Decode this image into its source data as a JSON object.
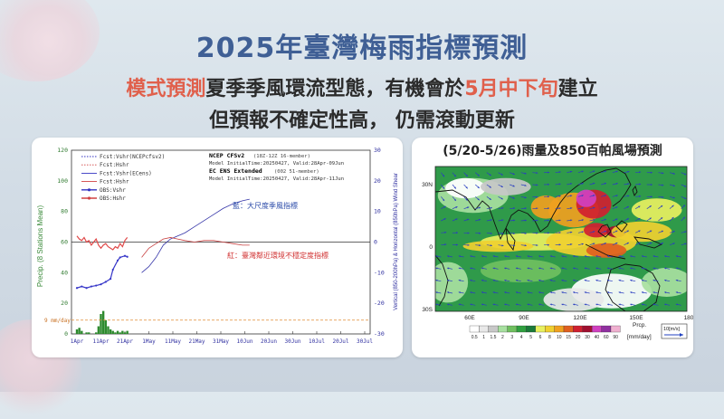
{
  "title": "2025年臺灣梅雨指標預測",
  "subtitle": {
    "line1_red1": "模式預測",
    "line1_mid": "夏季季風環流型態，有機會於",
    "line1_red2": "5月中下旬",
    "line1_end": "建立",
    "line2": "但預報不確定性高， 仍需滾動更新"
  },
  "chart_data": [
    {
      "type": "line",
      "ylabel": "Precip. (8 Stations Mean)",
      "y2label": "Vertical (850-200hPa) & Horizontal (850hPa) Wind Shear",
      "ylim": [
        0,
        120
      ],
      "y2lim": [
        -30,
        30
      ],
      "yticks": [
        "0",
        "20",
        "40",
        "60",
        "80",
        "100",
        "120"
      ],
      "y2ticks": [
        "-30",
        "-20",
        "-10",
        "0",
        "10",
        "20",
        "30"
      ],
      "xticks": [
        "1Apr",
        "11Apr",
        "21Apr",
        "1May",
        "11May",
        "21May",
        "31May",
        "10Jun",
        "20Jun",
        "30Jun",
        "10Jul",
        "20Jul",
        "30Jul"
      ],
      "threshold_label": "9 mm/day",
      "threshold": 9,
      "legend": [
        {
          "label": "Fcst:Vshr(NCEPcfsv2)",
          "color": "#3030c0",
          "style": "dotted"
        },
        {
          "label": "Fcst:Hshr",
          "color": "#d04040",
          "style": "dotted"
        },
        {
          "label": "Fcst:Vshr(ECens)",
          "color": "#3030c0",
          "style": "solid"
        },
        {
          "label": "Fcst:Hshr",
          "color": "#d04040",
          "style": "solid"
        },
        {
          "label": "OBS:Vshr",
          "color": "#3030c0",
          "style": "marker"
        },
        {
          "label": "OBS:Hshr",
          "color": "#d04040",
          "style": "marker"
        }
      ],
      "model_info": {
        "ncep_title": "NCEP CFSv2",
        "ncep_members": "(18Z-12Z 16-member)",
        "ncep_line": "Model InitialTime:20250427, Valid:28Apr-09Jun",
        "ec_title": "EC ENS Extended",
        "ec_members": "(002 51-member)",
        "ec_line": "Model InitialTime:20250427, Valid:28Apr-11Jun"
      },
      "annotations": {
        "blue": "藍：大尺度季風指標",
        "red": "紅：臺灣鄰近環境不穩定度指標"
      },
      "series": [
        {
          "name": "OBS:Vshr",
          "axis": "y2",
          "x": [
            0,
            2,
            4,
            6,
            8,
            10,
            12,
            14,
            15,
            17,
            18,
            20,
            21
          ],
          "values": [
            -15,
            -14.5,
            -15,
            -14.5,
            -14.2,
            -13.8,
            -13,
            -12,
            -9,
            -6,
            -5,
            -4.5,
            -4.8
          ]
        },
        {
          "name": "OBS:Hshr",
          "axis": "y2",
          "x": [
            0,
            1,
            2,
            3,
            4,
            5,
            6,
            7,
            8,
            9,
            10,
            11,
            12,
            13,
            14,
            15,
            16,
            17,
            18,
            19,
            20,
            21
          ],
          "values": [
            2,
            1,
            0.5,
            1.5,
            0,
            0.5,
            -1,
            0,
            1,
            -1,
            -2,
            -1,
            -0.5,
            -1.5,
            -2,
            -2.5,
            -1.5,
            -2,
            -0.5,
            -1.5,
            0.5,
            1.5
          ]
        },
        {
          "name": "Fcst:Vshr(ECens)",
          "axis": "y2",
          "x": [
            27,
            30,
            33,
            36,
            39,
            42,
            45,
            49,
            53,
            57,
            61,
            65,
            69,
            72
          ],
          "values": [
            -10,
            -8,
            -5,
            -1,
            1,
            2,
            3,
            5,
            7,
            9,
            11,
            12.5,
            13.5,
            14
          ]
        },
        {
          "name": "Fcst:Hshr",
          "axis": "y2",
          "x": [
            27,
            30,
            33,
            36,
            39,
            42,
            45,
            49,
            53,
            57,
            61,
            65,
            69,
            72
          ],
          "values": [
            -5,
            -2,
            -0.5,
            1,
            1.5,
            1,
            0.5,
            0,
            0.5,
            0.5,
            0,
            -0.5,
            -1,
            -1
          ]
        }
      ],
      "precip_bars": [
        {
          "x": 0,
          "v": 3
        },
        {
          "x": 1,
          "v": 4
        },
        {
          "x": 2,
          "v": 2
        },
        {
          "x": 4,
          "v": 1
        },
        {
          "x": 5,
          "v": 1
        },
        {
          "x": 8,
          "v": 1
        },
        {
          "x": 9,
          "v": 5
        },
        {
          "x": 10,
          "v": 13
        },
        {
          "x": 11,
          "v": 15
        },
        {
          "x": 12,
          "v": 9
        },
        {
          "x": 13,
          "v": 5
        },
        {
          "x": 14,
          "v": 3
        },
        {
          "x": 15,
          "v": 2
        },
        {
          "x": 16,
          "v": 1
        },
        {
          "x": 17,
          "v": 2
        },
        {
          "x": 18,
          "v": 1
        },
        {
          "x": 19,
          "v": 2
        },
        {
          "x": 20,
          "v": 1
        },
        {
          "x": 21,
          "v": 2
        }
      ]
    },
    {
      "type": "map",
      "title": "(5/20-5/26)雨量及850百帕風場預測",
      "lat_labels": [
        "30N",
        "0",
        "30S"
      ],
      "lon_labels": [
        "60E",
        "90E",
        "120E",
        "150E",
        "180"
      ],
      "colorbar_values": [
        "0.5",
        "1",
        "1.5",
        "2",
        "3",
        "4",
        "5",
        "6",
        "8",
        "10",
        "15",
        "20",
        "30",
        "40",
        "60",
        "90"
      ],
      "colorbar_colors": [
        "#ffffff",
        "#e8e8e8",
        "#c8c8c8",
        "#a8e0a0",
        "#70c060",
        "#30a040",
        "#1a7a3a",
        "#e8f060",
        "#f0d030",
        "#f0a020",
        "#e06020",
        "#d02030",
        "#a01030",
        "#d040c0",
        "#9030a0",
        "#f0b0d0"
      ],
      "colorbar_unit_top": "Prcp.",
      "colorbar_unit_bottom": "[mm/day]",
      "wind_scale": "10[m/s]"
    }
  ]
}
